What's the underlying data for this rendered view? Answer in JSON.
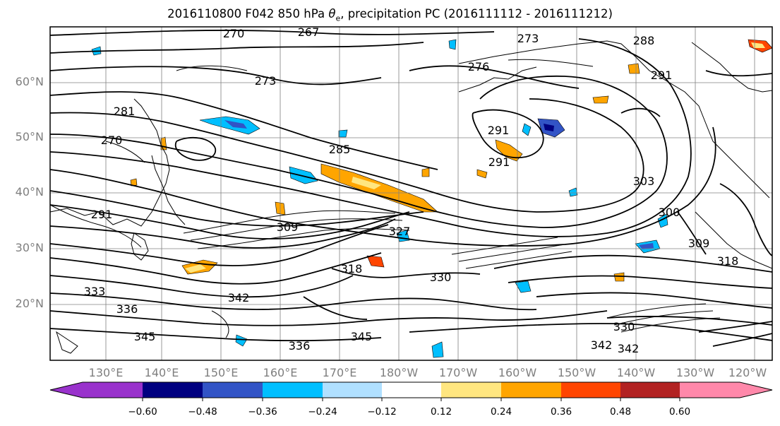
{
  "title_main": "2016110800 F042 850 hPa ",
  "title_symbol": "θ",
  "title_sub": "e",
  "title_tail": ", precipitation PC (2016111112 - 2016111212)",
  "lat_labels": [
    "60°N",
    "50°N",
    "40°N",
    "30°N",
    "20°N"
  ],
  "lon_labels": [
    "130°E",
    "140°E",
    "150°E",
    "160°E",
    "170°E",
    "180°W",
    "170°W",
    "160°W",
    "150°W",
    "140°W",
    "130°W",
    "120°W"
  ],
  "contour_labels": [
    "270",
    "267",
    "273",
    "288",
    "291",
    "273",
    "276",
    "281",
    "270",
    "285",
    "291",
    "291",
    "303",
    "300",
    "291",
    "309",
    "318",
    "327",
    "330",
    "333",
    "336",
    "342",
    "345",
    "336",
    "345",
    "342",
    "342",
    "330",
    "318",
    "309"
  ],
  "colorbar": {
    "ticks": [
      "−0.60",
      "−0.48",
      "−0.36",
      "−0.24",
      "−0.12",
      "0.12",
      "0.24",
      "0.36",
      "0.48",
      "0.60"
    ],
    "colors": {
      "under": "#9932cc",
      "bins": [
        "#9932cc",
        "#000080",
        "#3254c6",
        "#00bfff",
        "#b0e0ff",
        "#ffffff",
        "#ffe680",
        "#ffa500",
        "#ff4500",
        "#b22222",
        "#ff88aa"
      ],
      "over": "#ff88aa"
    }
  },
  "colors": {
    "contour": "#000000",
    "grid": "#808080",
    "coast": "#000000",
    "axis_label": "#7f7f7f"
  }
}
